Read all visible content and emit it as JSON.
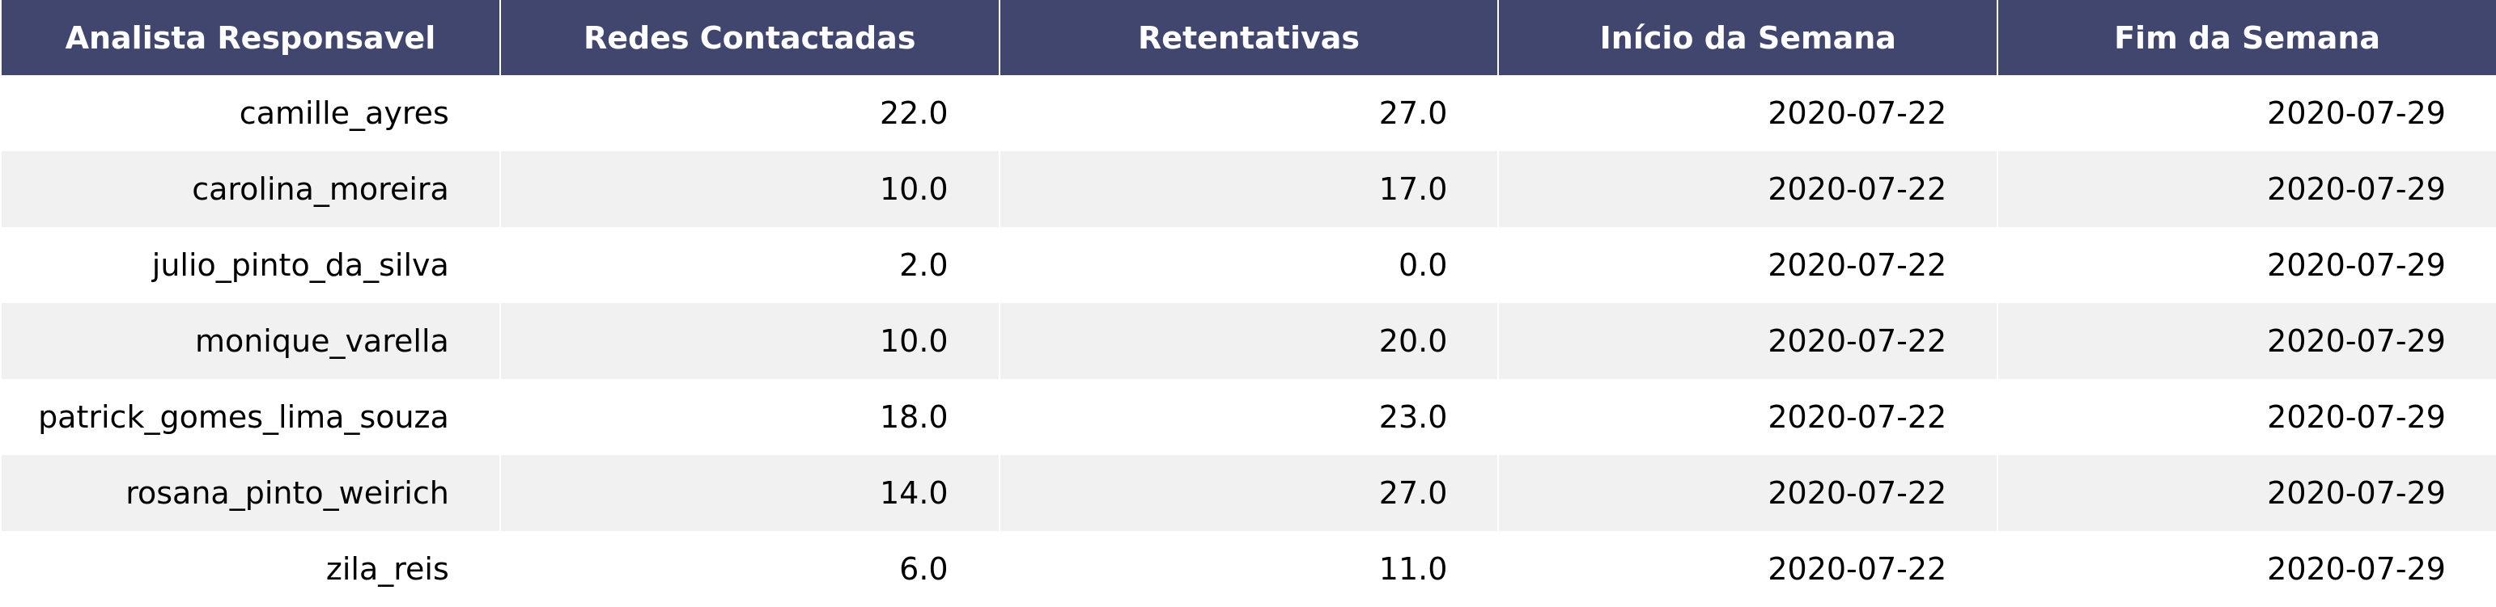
{
  "chart_data": {
    "type": "table",
    "header_color": "#40466e",
    "row_colors": [
      "#ffffff",
      "#f1f1f2"
    ],
    "columns": [
      "Analista Responsavel",
      "Redes Contactadas",
      "Retentativas",
      "Início da Semana",
      "Fim da Semana"
    ],
    "rows": [
      [
        "camille_ayres",
        "22.0",
        "27.0",
        "2020-07-22",
        "2020-07-29"
      ],
      [
        "carolina_moreira",
        "10.0",
        "17.0",
        "2020-07-22",
        "2020-07-29"
      ],
      [
        "julio_pinto_da_silva",
        "2.0",
        "0.0",
        "2020-07-22",
        "2020-07-29"
      ],
      [
        "monique_varella",
        "10.0",
        "20.0",
        "2020-07-22",
        "2020-07-29"
      ],
      [
        "patrick_gomes_lima_souza",
        "18.0",
        "23.0",
        "2020-07-22",
        "2020-07-29"
      ],
      [
        "rosana_pinto_weirich",
        "14.0",
        "27.0",
        "2020-07-22",
        "2020-07-29"
      ],
      [
        "zila_reis",
        "6.0",
        "11.0",
        "2020-07-22",
        "2020-07-29"
      ]
    ]
  }
}
